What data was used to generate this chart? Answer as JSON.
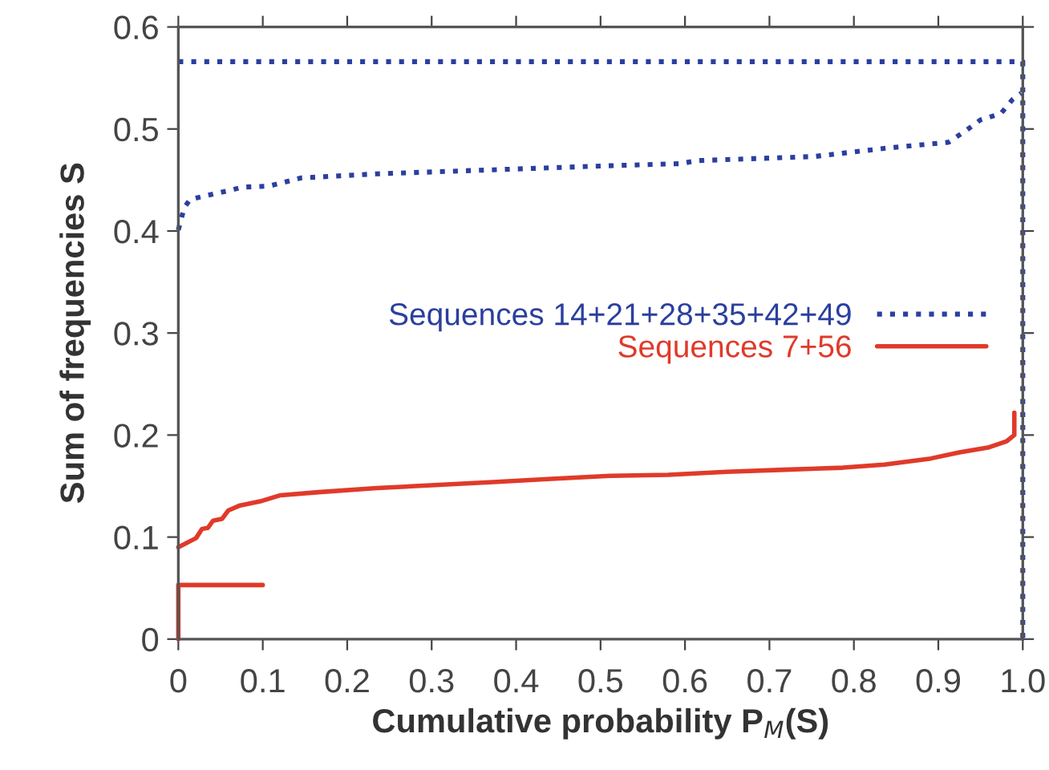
{
  "chart_data": {
    "type": "line",
    "xlabel": "Cumulative probability P$_{M}$(S)",
    "ylabel": "Sum of frequencies S",
    "xlim": [
      0,
      1.0
    ],
    "ylim": [
      0,
      0.6
    ],
    "xticks": [
      0,
      0.1,
      0.2,
      0.3,
      0.4,
      0.5,
      0.6,
      0.7,
      0.8,
      0.9,
      {
        "value": 1.0,
        "label": "1.0"
      }
    ],
    "yticks": [
      0,
      0.1,
      0.2,
      0.3,
      0.4,
      0.5,
      0.6
    ],
    "grid": false,
    "legend": "right",
    "marker": "none",
    "series": [
      {
        "name": "Sequences 14+21+28+35+42+49",
        "color": "#2b3f9e",
        "line_style": "dotted",
        "x": [
          0,
          0.007,
          0.014,
          0.035,
          0.062,
          0.076,
          0.107,
          0.145,
          0.235,
          0.373,
          0.511,
          0.594,
          0.615,
          0.753,
          0.836,
          0.912,
          0.932,
          0.95,
          0.974,
          0.988,
          0.998,
          null,
          0,
          1.0,
          1.0
        ],
        "values": [
          0.401,
          0.423,
          0.431,
          0.435,
          0.44,
          0.443,
          0.444,
          0.452,
          0.456,
          0.46,
          0.464,
          0.466,
          0.469,
          0.473,
          0.481,
          0.487,
          0.498,
          0.509,
          0.515,
          0.529,
          0.535,
          null,
          0.566,
          0.566,
          0
        ]
      },
      {
        "name": "Sequences 7+56",
        "color": "#e03a2a",
        "line_style": "solid",
        "x": [
          0,
          0,
          0.1,
          null,
          0,
          0.021,
          0.028,
          0.035,
          0.041,
          0.052,
          0.059,
          0.073,
          0.097,
          0.121,
          0.166,
          0.235,
          0.304,
          0.373,
          0.442,
          0.511,
          0.58,
          0.649,
          0.718,
          0.787,
          0.836,
          0.891,
          0.925,
          0.96,
          0.981,
          0.99,
          0.99
        ],
        "values": [
          0,
          0.053,
          0.053,
          null,
          0.09,
          0.099,
          0.108,
          0.109,
          0.116,
          0.118,
          0.126,
          0.131,
          0.135,
          0.141,
          0.144,
          0.148,
          0.151,
          0.154,
          0.157,
          0.16,
          0.161,
          0.164,
          0.166,
          0.168,
          0.171,
          0.177,
          0.183,
          0.188,
          0.194,
          0.2,
          0.222
        ]
      }
    ]
  }
}
